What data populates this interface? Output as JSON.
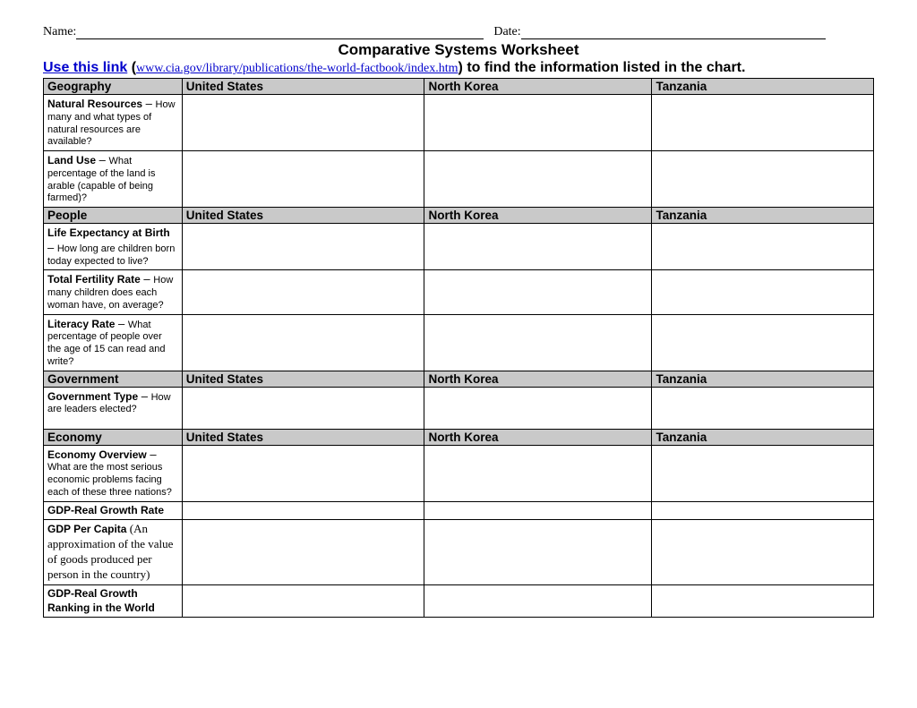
{
  "header": {
    "name_label": "Name:",
    "date_label": "Date:",
    "title": "Comparative Systems Worksheet",
    "instr_link": "Use this link",
    "instr_open": " (",
    "instr_url": "www.cia.gov/library/publications/the-world-factbook/index.htm",
    "instr_close": ") ",
    "instr_rest": "to find the information listed in the chart."
  },
  "columns": {
    "country1": "United States",
    "country2": "North Korea",
    "country3": "Tanzania"
  },
  "sections": [
    {
      "title": "Geography",
      "rows": [
        {
          "lead": "Natural Resources",
          "dash": " – ",
          "desc": "How many and what types of natural resources are available?",
          "height": "tall"
        },
        {
          "lead": "Land Use",
          "dash": " – ",
          "desc": "What percentage of the land is arable (capable of being farmed)?",
          "height": "tall"
        }
      ]
    },
    {
      "title": "People",
      "rows": [
        {
          "lead": "Life Expectancy at Birth",
          "dash": " – ",
          "desc": "How long are children born today expected to live?",
          "height": "med"
        },
        {
          "lead": "Total Fertility Rate",
          "dash": " – ",
          "desc": "How many children does each woman have, on average?",
          "height": "med"
        },
        {
          "lead": "Literacy Rate",
          "dash": " – ",
          "desc": "What percentage of people over the age of 15 can read and write?",
          "height": "med"
        }
      ]
    },
    {
      "title": "Government",
      "rows": [
        {
          "lead": "Government Type",
          "dash": " – ",
          "desc": "How are leaders elected?",
          "height": "med"
        }
      ]
    },
    {
      "title": "Economy",
      "rows": [
        {
          "lead": "Economy Overview",
          "dash": " – ",
          "desc": "What are the most serious economic problems facing each of these three nations?",
          "height": "tall"
        },
        {
          "lead": "GDP-Real Growth Rate",
          "dash": "",
          "desc": "",
          "height": ""
        },
        {
          "special": "gdpcap",
          "lead": "GDP Per Capita",
          "desc": "(An approximation of the value of goods produced per person in the country)"
        },
        {
          "lead": "GDP-Real Growth Ranking in the World",
          "dash": "",
          "desc": "",
          "height": ""
        }
      ]
    }
  ]
}
